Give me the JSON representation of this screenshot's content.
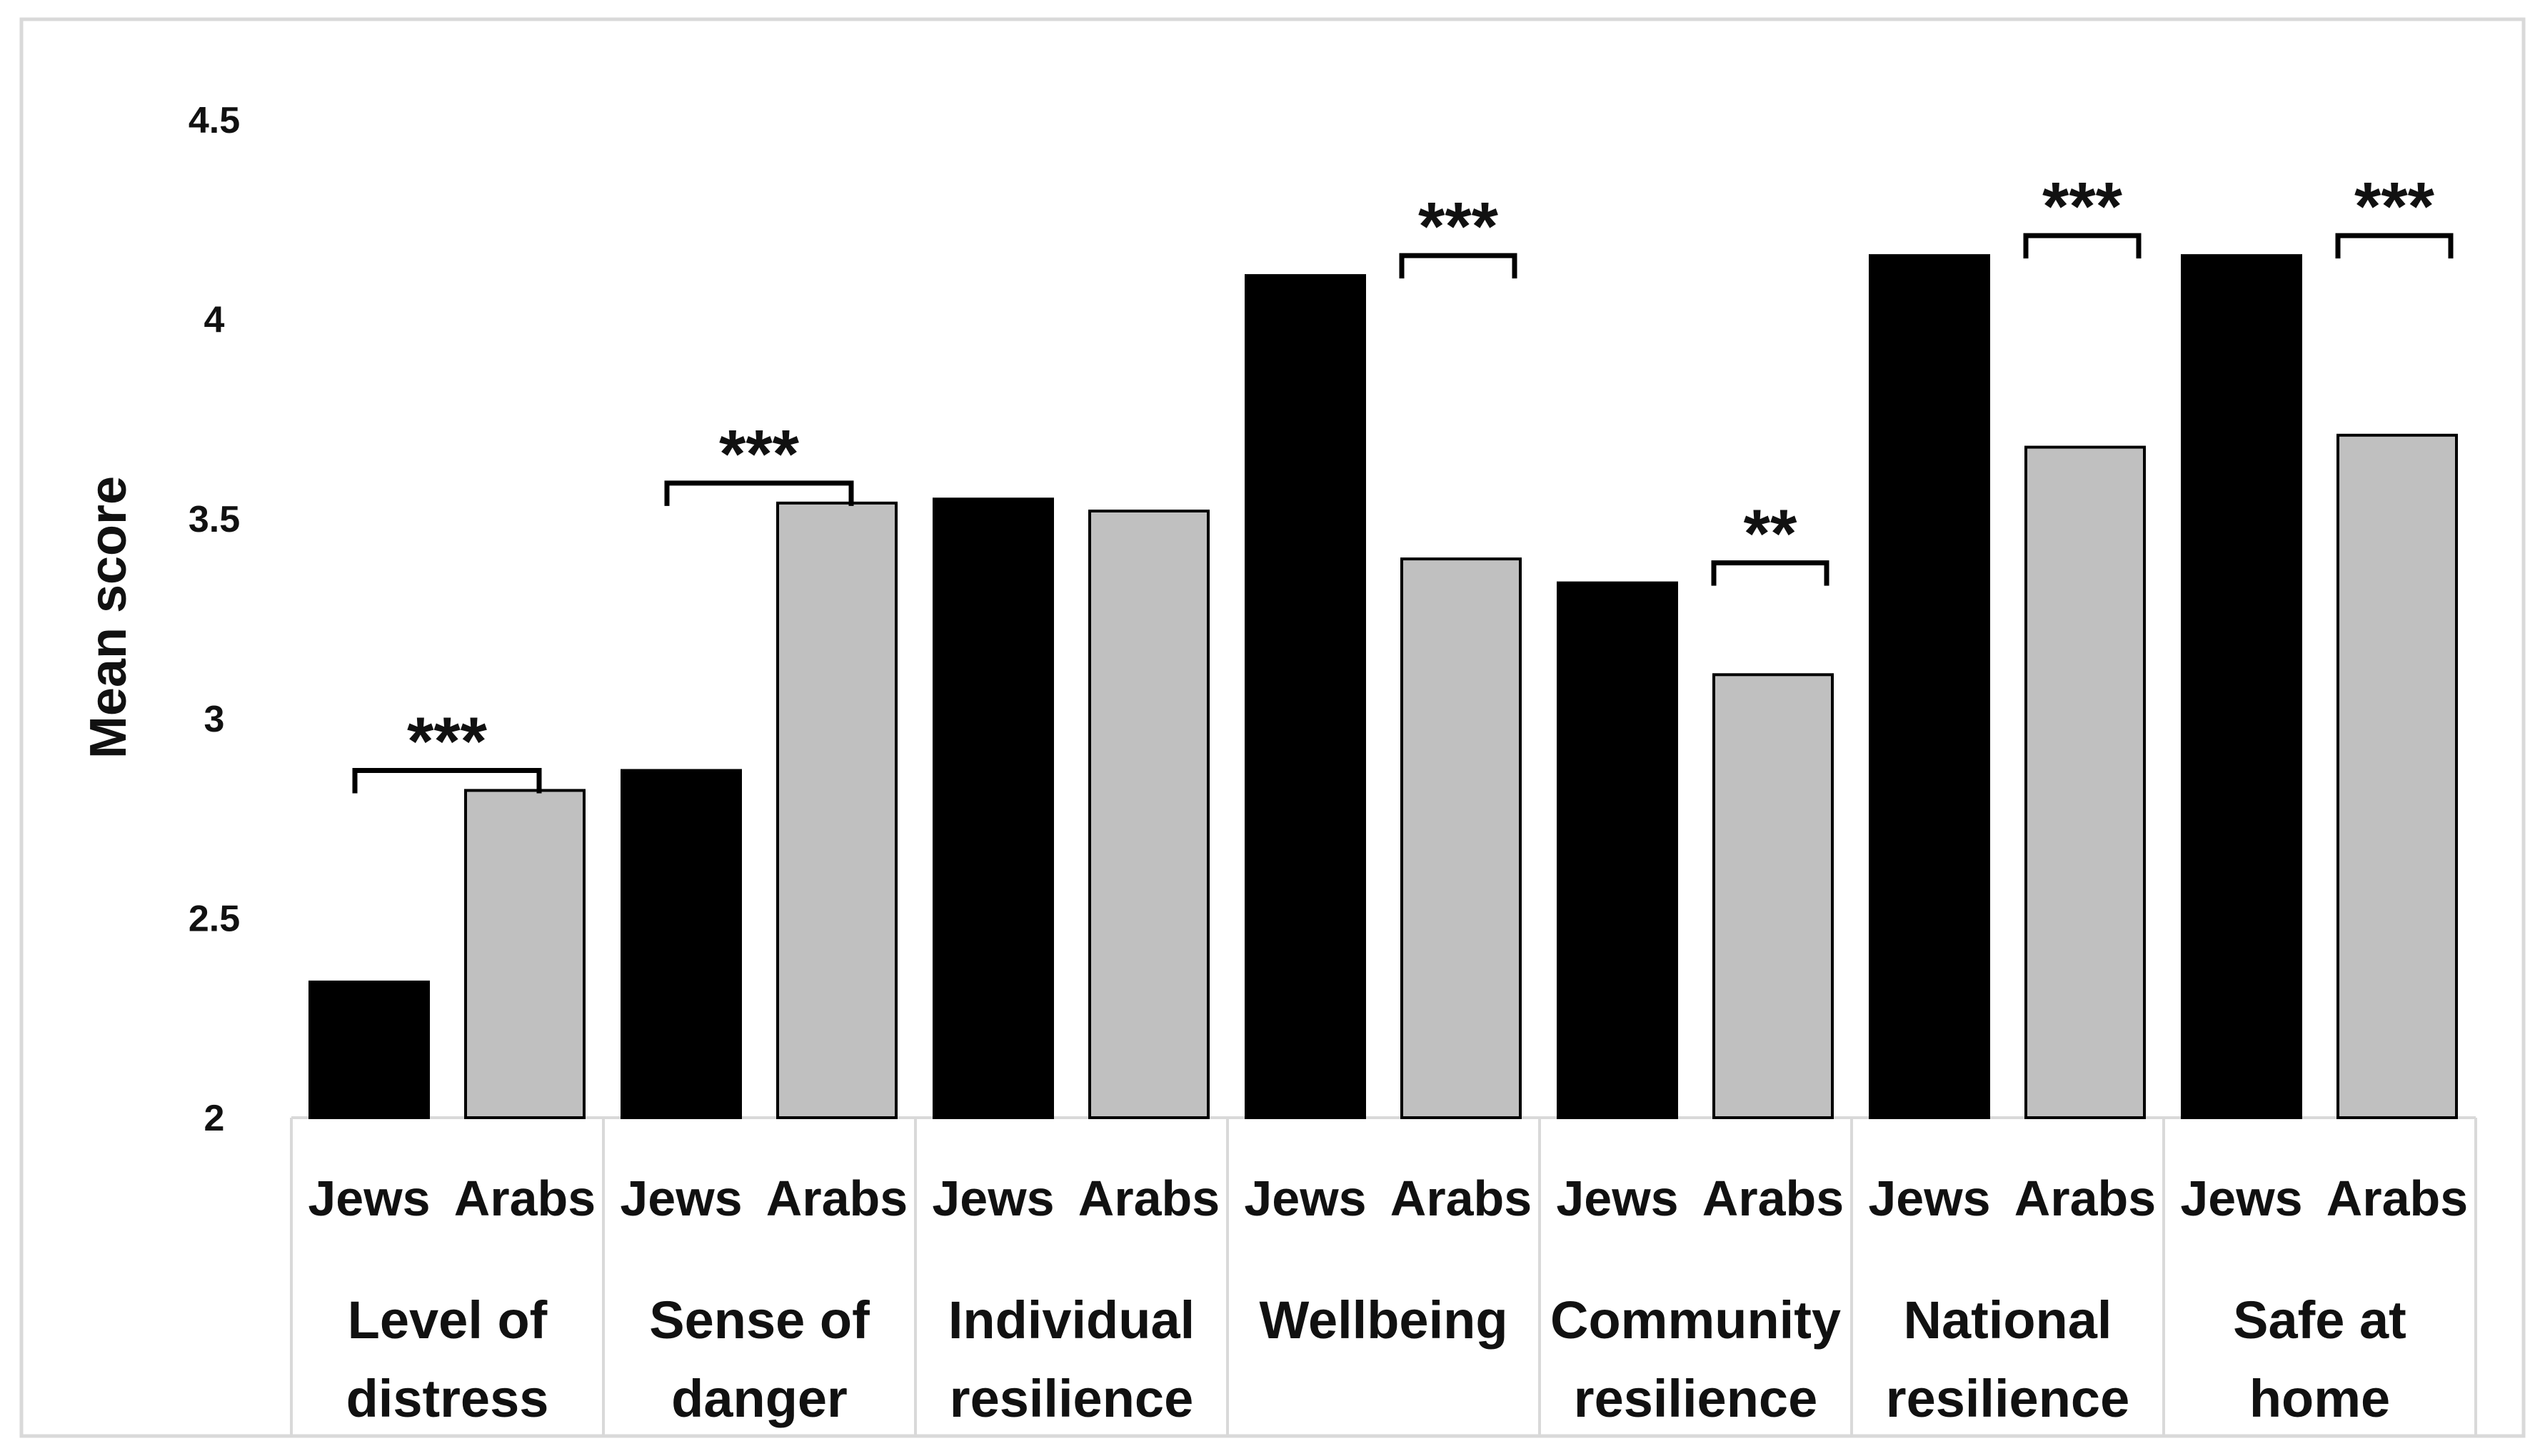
{
  "chart_data": {
    "type": "bar",
    "ylabel": "Mean score",
    "ylim": [
      2,
      4.5
    ],
    "yticks": [
      "2",
      "2.5",
      "3",
      "3.5",
      "4",
      "4.5"
    ],
    "categories": [
      [
        "Level of",
        "distress"
      ],
      [
        "Sense of",
        "danger"
      ],
      [
        "Individual",
        "resilience"
      ],
      [
        "Wellbeing"
      ],
      [
        "Community",
        "resilience"
      ],
      [
        "National",
        "resilience"
      ],
      [
        "Safe at",
        "home"
      ]
    ],
    "series": [
      {
        "name": "Jews",
        "color": "#000000",
        "values": [
          2.34,
          2.87,
          3.55,
          4.11,
          3.34,
          4.16,
          4.16
        ]
      },
      {
        "name": "Arabs",
        "color": "#c0c0c0",
        "values": [
          2.82,
          3.54,
          3.52,
          3.4,
          3.11,
          3.68,
          3.71
        ]
      }
    ],
    "significance": [
      "***",
      "***",
      "",
      "***",
      "**",
      "***",
      "***"
    ]
  }
}
